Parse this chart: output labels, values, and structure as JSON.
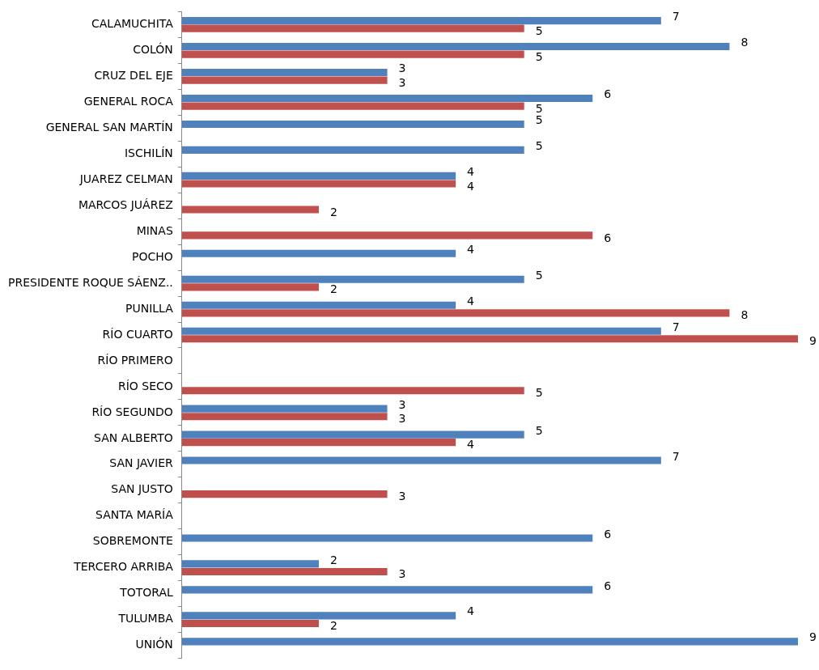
{
  "chart_data": {
    "type": "bar",
    "orientation": "horizontal",
    "categories": [
      "CALAMUCHITA",
      "COLÓN",
      "CRUZ DEL EJE",
      "GENERAL ROCA",
      "GENERAL SAN MARTÍN",
      "ISCHILÍN",
      "JUAREZ CELMAN",
      "MARCOS JUÁREZ",
      "MINAS",
      "POCHO",
      "PRESIDENTE ROQUE SÁENZ..",
      "PUNILLA",
      "RÍO CUARTO",
      "RÍO PRIMERO",
      "RÍO SECO",
      "RÍO SEGUNDO",
      "SAN ALBERTO",
      "SAN JAVIER",
      "SAN JUSTO",
      "SANTA MARÍA",
      "SOBREMONTE",
      "TERCERO ARRIBA",
      "TOTORAL",
      "TULUMBA",
      "UNIÓN"
    ],
    "series": [
      {
        "color": "#4f81bd",
        "values": [
          7,
          8,
          3,
          6,
          5,
          5,
          4,
          null,
          null,
          4,
          5,
          4,
          7,
          null,
          null,
          3,
          5,
          7,
          null,
          null,
          6,
          2,
          6,
          4,
          9
        ]
      },
      {
        "color": "#c0504d",
        "values": [
          5,
          5,
          3,
          5,
          null,
          null,
          4,
          2,
          6,
          null,
          2,
          8,
          9,
          null,
          5,
          3,
          4,
          null,
          3,
          null,
          null,
          3,
          null,
          2,
          null
        ]
      }
    ],
    "xlim": [
      0,
      9
    ],
    "tick_labels": "y",
    "grid": false,
    "legend": false,
    "data_labels": true
  }
}
